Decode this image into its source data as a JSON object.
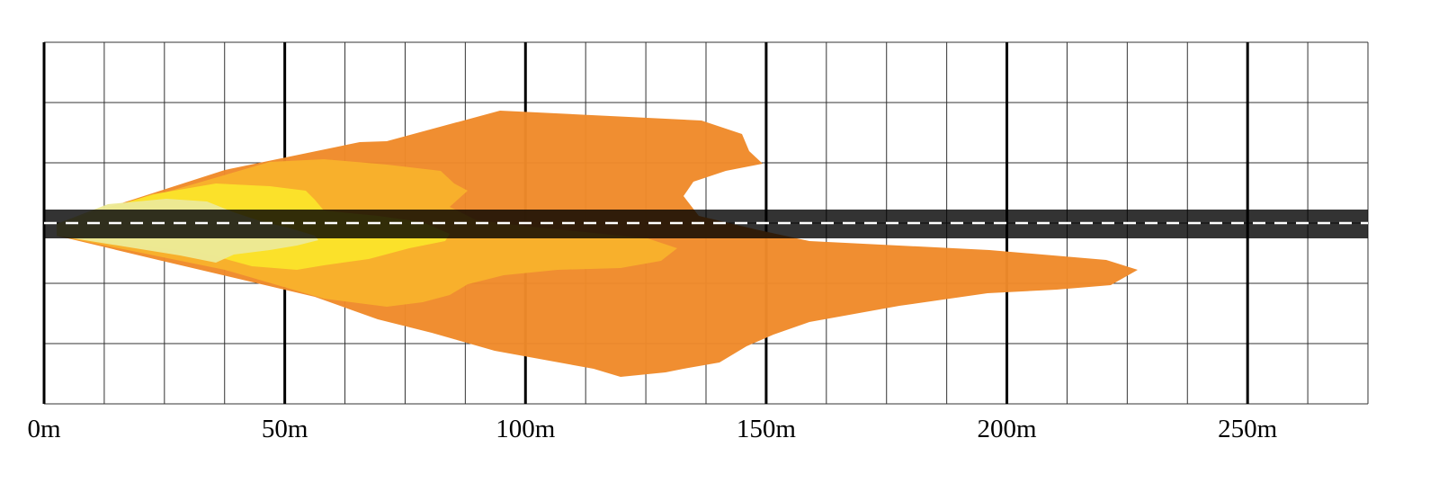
{
  "x_axis": {
    "unit": "m",
    "min": 0,
    "max": 275,
    "major_every": 50,
    "minor_every": 12.5,
    "tick_labels": [
      "0m",
      "50m",
      "100m",
      "150m",
      "200m",
      "250m"
    ]
  },
  "zone_colors": {
    "far": "#f08a2a",
    "mid": "#f8b22c",
    "near": "#fbe22a",
    "close": "#ece996"
  },
  "road": {
    "surface_color": "#000000",
    "center_line_color": "#ffffff",
    "center_line_style": "dashed"
  }
}
